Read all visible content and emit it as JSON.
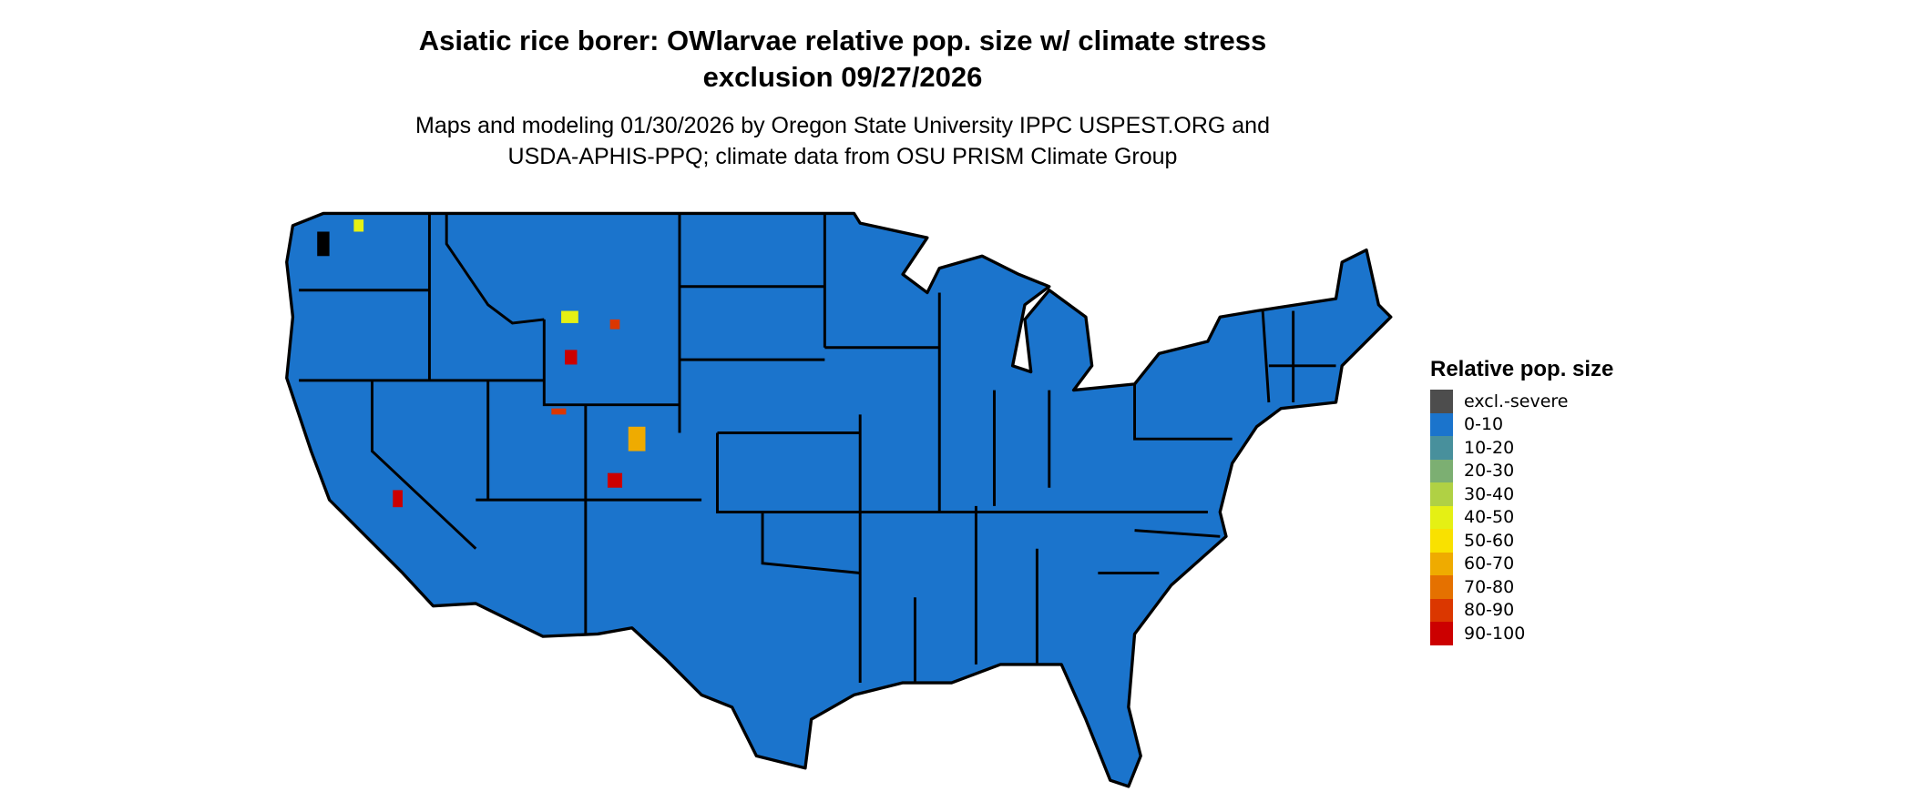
{
  "title_line1": "Asiatic rice borer: OWlarvae relative pop. size w/ climate stress",
  "title_line2": "exclusion 09/27/2026",
  "subtitle_line1": "Maps and modeling 01/30/2026 by Oregon State University IPPC USPEST.ORG and",
  "subtitle_line2": "USDA-APHIS-PPQ; climate data from OSU PRISM Climate Group",
  "map": {
    "region": "Contiguous United States",
    "dominant_class": "0-10",
    "hotspot_classes": [
      "40-50",
      "60-70",
      "80-90",
      "90-100"
    ]
  },
  "legend": {
    "title": "Relative pop. size",
    "items": [
      {
        "label": "excl.-severe",
        "color": "#4d4d4d"
      },
      {
        "label": "0-10",
        "color": "#1b74cc"
      },
      {
        "label": "10-20",
        "color": "#48909c"
      },
      {
        "label": "20-30",
        "color": "#7caf72"
      },
      {
        "label": "30-40",
        "color": "#b0d144"
      },
      {
        "label": "40-50",
        "color": "#e5f014"
      },
      {
        "label": "50-60",
        "color": "#f9e100"
      },
      {
        "label": "60-70",
        "color": "#efab00"
      },
      {
        "label": "70-80",
        "color": "#e57100"
      },
      {
        "label": "80-90",
        "color": "#db3700"
      },
      {
        "label": "90-100",
        "color": "#cc0000"
      }
    ]
  }
}
